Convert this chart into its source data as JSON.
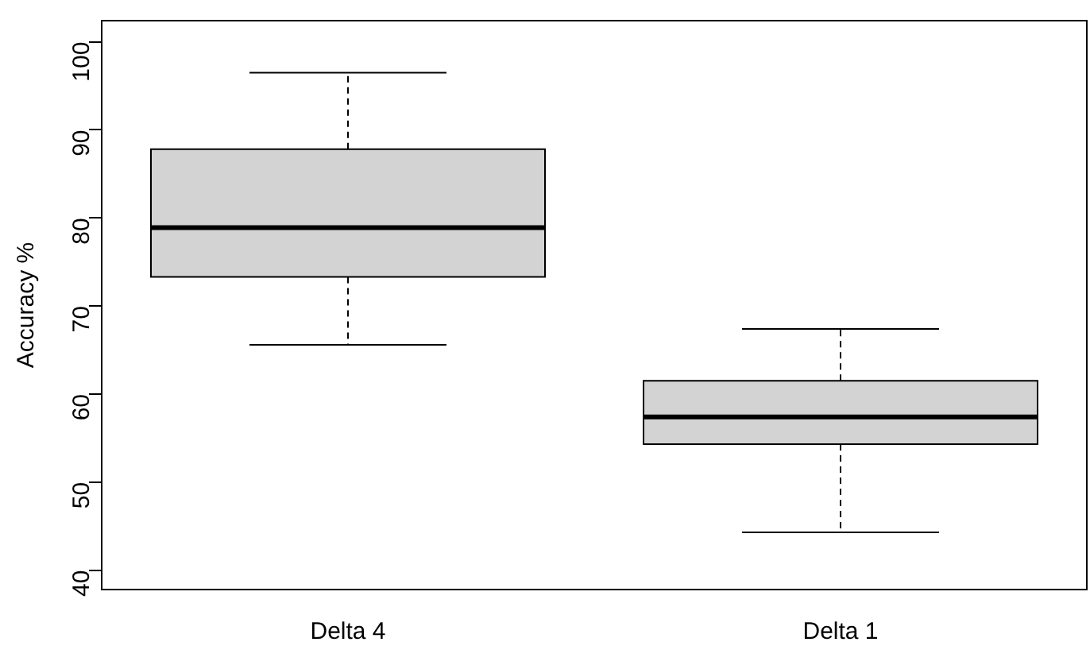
{
  "chart_data": {
    "type": "box",
    "ylabel": "Accuracy %",
    "categories": [
      "Delta 4",
      "Delta 1"
    ],
    "boxes": [
      {
        "low": 65.6,
        "q1": 73.3,
        "median": 78.9,
        "q3": 87.8,
        "high": 96.5
      },
      {
        "low": 44.3,
        "q1": 54.3,
        "median": 57.4,
        "q3": 61.5,
        "high": 67.4
      }
    ],
    "color": "#d3d3d3",
    "ylim": [
      37.8,
      102.4
    ],
    "yticks": [
      40,
      50,
      60,
      70,
      80,
      90,
      100
    ],
    "grid": false,
    "legend": false
  }
}
